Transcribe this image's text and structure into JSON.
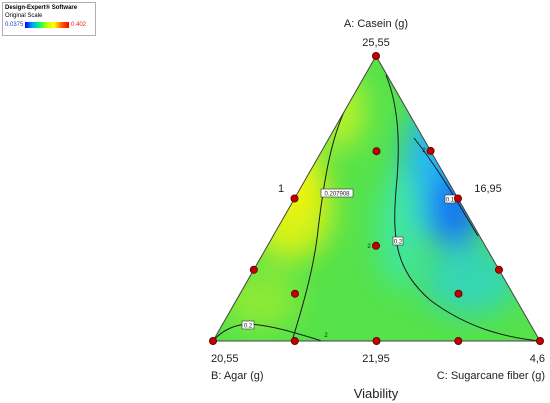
{
  "legend": {
    "software": "Design-Expert® Software",
    "scale": "Original Scale",
    "min_label": "0.0375",
    "max_label": "0.402",
    "gradient_colors": [
      "#0000ff",
      "#00a0ff",
      "#00ff60",
      "#c0ff00",
      "#ffff00",
      "#ff6000",
      "#ff0000"
    ]
  },
  "chart_data": {
    "type": "ternary-contour",
    "title": "Viability",
    "components": [
      {
        "id": "A",
        "label": "A: Casein (g)",
        "vertex": "top",
        "max_label": "25,55"
      },
      {
        "id": "B",
        "label": "B: Agar (g)",
        "vertex": "bottom-left",
        "max_label": "20,55"
      },
      {
        "id": "C",
        "label": "C: Sugarcane fiber (g)",
        "vertex": "bottom-right",
        "max_label": "4,6"
      }
    ],
    "edge_labels": {
      "left": "1",
      "right": "16,95",
      "bottom": "21,95"
    },
    "contour_labels": [
      "0.207908",
      "0.2",
      "0.1",
      "0.2"
    ],
    "replicate_labels": [
      "2",
      "2",
      "2"
    ],
    "design_points": [
      {
        "a": 1,
        "b": 0,
        "c": 0
      },
      {
        "a": 0,
        "b": 1,
        "c": 0
      },
      {
        "a": 0,
        "b": 0,
        "c": 1
      },
      {
        "a": 0.5,
        "b": 0.5,
        "c": 0
      },
      {
        "a": 0.5,
        "b": 0,
        "c": 0.5
      },
      {
        "a": 0,
        "b": 0.5,
        "c": 0.5
      },
      {
        "a": 0.667,
        "b": 0.167,
        "c": 0.167
      },
      {
        "a": 0.25,
        "b": 0.75,
        "c": 0
      },
      {
        "a": 0.25,
        "b": 0,
        "c": 0.75
      },
      {
        "a": 0.333,
        "b": 0.333,
        "c": 0.333
      },
      {
        "a": 0.167,
        "b": 0.667,
        "c": 0.167
      },
      {
        "a": 0.167,
        "b": 0.167,
        "c": 0.667
      },
      {
        "a": 0,
        "b": 0.75,
        "c": 0.25
      },
      {
        "a": 0,
        "b": 0.25,
        "c": 0.75
      },
      {
        "a": 0.667,
        "b": 0,
        "c": 0.333
      }
    ],
    "colorscale": {
      "min": 0.0375,
      "max": 0.402
    }
  }
}
